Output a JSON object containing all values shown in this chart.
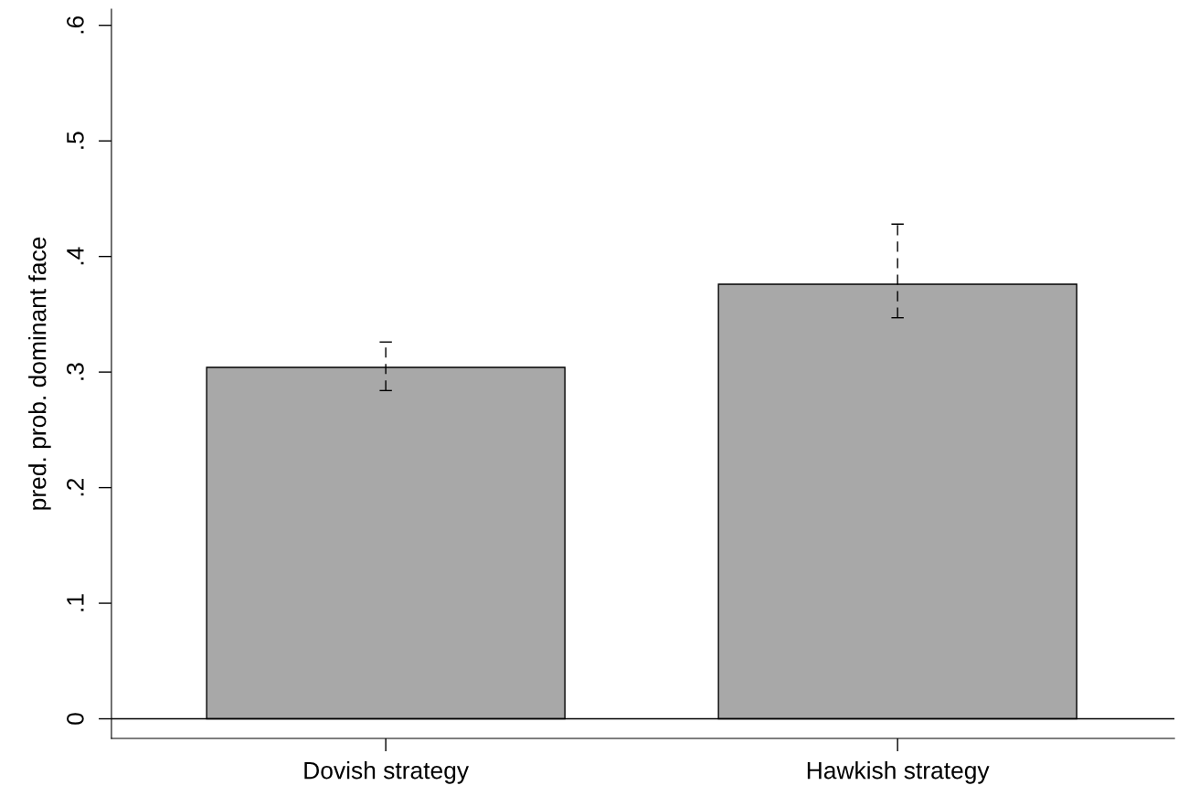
{
  "chart_data": {
    "type": "bar",
    "ylabel": "pred. prob. dominant face",
    "categories": [
      "Dovish strategy",
      "Hawkish strategy"
    ],
    "values": [
      0.304,
      0.376
    ],
    "color": "#a8a8a8",
    "errors": [
      [
        0.284,
        0.326
      ],
      [
        0.347,
        0.428
      ]
    ],
    "ylim": [
      -0.017,
      0.614
    ],
    "yticks": [
      {
        "value": 0,
        "label": "0"
      },
      {
        "value": 0.1,
        "label": ".1"
      },
      {
        "value": 0.2,
        "label": ".2"
      },
      {
        "value": 0.3,
        "label": ".3"
      },
      {
        "value": 0.4,
        "label": ".4"
      },
      {
        "value": 0.5,
        "label": ".5"
      },
      {
        "value": 0.6,
        "label": ".6"
      }
    ],
    "ref_lines": [
      {
        "axis": "y",
        "value": 0,
        "color": "#000000"
      }
    ],
    "grid": false,
    "legend": false
  }
}
